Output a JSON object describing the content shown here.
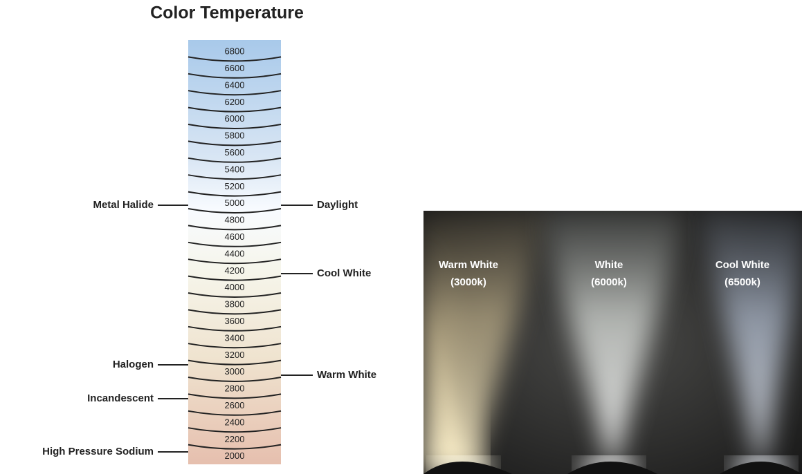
{
  "title": "Color Temperature",
  "scale": [
    "6800",
    "6600",
    "6400",
    "6200",
    "6000",
    "5800",
    "5600",
    "5400",
    "5200",
    "5000",
    "4800",
    "4600",
    "4400",
    "4200",
    "4000",
    "3800",
    "3600",
    "3400",
    "3200",
    "3000",
    "2800",
    "2600",
    "2400",
    "2200",
    "2000"
  ],
  "left_labels": [
    "Metal Halide",
    "Halogen",
    "Incandescent",
    "High Pressure Sodium"
  ],
  "right_labels": [
    "Daylight",
    "Cool White",
    "Warm White"
  ],
  "photo_labels": [
    {
      "name": "Warm White",
      "temp": "(3000k)"
    },
    {
      "name": "White",
      "temp": "(6000k)"
    },
    {
      "name": "Cool White",
      "temp": "(6500k)"
    }
  ]
}
